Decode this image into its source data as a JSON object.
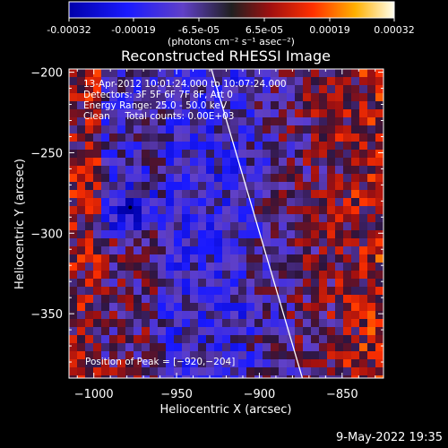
{
  "colorbar": {
    "ticks": [
      "-0.00032",
      "-0.00019",
      "-6.5e-05",
      "6.5e-05",
      "0.00019",
      "0.00032"
    ],
    "unit_label": "(photons cm⁻² s⁻¹ asec⁻²)"
  },
  "chart_data": {
    "type": "heatmap",
    "title": "Reconstructed RHESSI Image",
    "xlabel": "Heliocentric X (arcsec)",
    "ylabel": "Heliocentric Y (arcsec)",
    "xlim": [
      -1015,
      -825
    ],
    "ylim": [
      -390,
      -198
    ],
    "x_ticks": [
      -1000,
      -950,
      -900,
      -850
    ],
    "y_ticks": [
      -200,
      -250,
      -300,
      -350
    ],
    "x_tick_labels": [
      "−1000",
      "−950",
      "−900",
      "−850"
    ],
    "y_tick_labels": [
      "−200",
      "−250",
      "−300",
      "−350"
    ],
    "value_range": [
      -0.00032,
      0.00032
    ],
    "limb_line": [
      [
        -929,
        -198
      ],
      [
        -874,
        -390
      ]
    ],
    "peak": [
      -920,
      -204
    ],
    "min_marker": [
      -978,
      -284
    ],
    "annotations": [
      "13-Apr-2012 10:01:24.000 to 10:07:24.000",
      "Detectors: 3F 5F 6F 7F 8F, Att 0",
      "Energy Range: 25.0 - 50.0 keV",
      "Clean     Total counts: 0.00E+03"
    ],
    "peak_label": "Position of Peak = [−920,−204]"
  },
  "footer": {
    "timestamp": "9-May-2022 19:35"
  },
  "colors": {
    "background": "#000000",
    "axis": "#ffffff",
    "limb": "#ffffff"
  }
}
